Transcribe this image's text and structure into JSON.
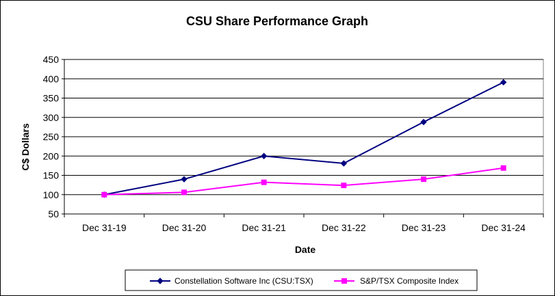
{
  "chart_data": {
    "type": "line",
    "title": "CSU Share Performance Graph",
    "xlabel": "Date",
    "ylabel": "C$ Dollars",
    "categories": [
      "Dec 31-19",
      "Dec 31-20",
      "Dec 31-21",
      "Dec 31-22",
      "Dec 31-23",
      "Dec 31-24"
    ],
    "ylim": [
      50,
      450
    ],
    "yticks": [
      50,
      100,
      150,
      200,
      250,
      300,
      350,
      400,
      450
    ],
    "grid": "horizontal",
    "legend_position": "bottom",
    "series": [
      {
        "name": "Constellation Software Inc (CSU:TSX)",
        "values": [
          100,
          140,
          200,
          181,
          288,
          391
        ],
        "color": "#000080",
        "marker": "diamond"
      },
      {
        "name": "S&P/TSX Composite Index",
        "values": [
          100,
          106,
          132,
          124,
          140,
          169
        ],
        "color": "#ff00ff",
        "marker": "square"
      }
    ]
  }
}
